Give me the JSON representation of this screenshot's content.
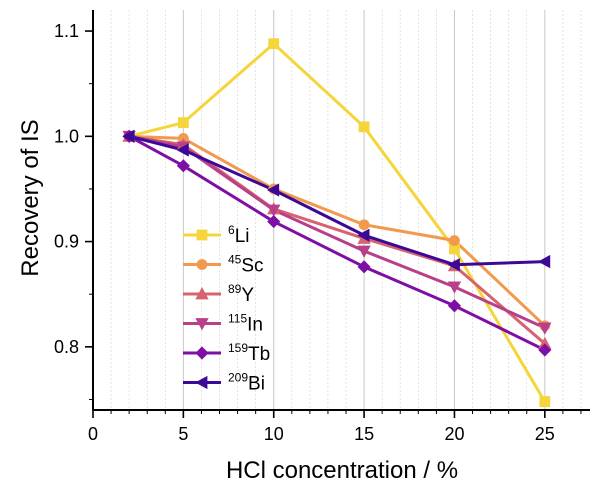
{
  "chart_data": {
    "type": "line",
    "title": "",
    "xlabel": "HCl concentration / %",
    "ylabel": "Recovery of IS",
    "xlim": [
      0,
      27.5
    ],
    "ylim": [
      0.74,
      1.12
    ],
    "x_ticks": [
      0,
      5,
      10,
      15,
      20,
      25
    ],
    "y_ticks": [
      0.8,
      0.9,
      1.0,
      1.1
    ],
    "x_tick_labels": [
      "0",
      "5",
      "10",
      "15",
      "20",
      "25"
    ],
    "y_tick_labels": [
      "0.8",
      "0.9",
      "1.0",
      "1.1"
    ],
    "grid": "vertical",
    "legend_placement": "lower-left",
    "series": [
      {
        "mass": "6",
        "element": "Li",
        "color": "#f5d53a",
        "marker": "square",
        "x": [
          2,
          5,
          10,
          15,
          20,
          25
        ],
        "y": [
          1.0,
          1.013,
          1.088,
          1.009,
          0.893,
          0.748
        ]
      },
      {
        "mass": "45",
        "element": "Sc",
        "color": "#f19a4e",
        "marker": "circle",
        "x": [
          2,
          5,
          10,
          15,
          20,
          25
        ],
        "y": [
          1.0,
          0.998,
          0.95,
          0.916,
          0.901,
          0.82
        ]
      },
      {
        "mass": "89",
        "element": "Y",
        "color": "#d7636e",
        "marker": "triangle-up",
        "x": [
          2,
          5,
          10,
          15,
          20,
          25
        ],
        "y": [
          1.0,
          0.992,
          0.931,
          0.903,
          0.877,
          0.803
        ]
      },
      {
        "mass": "115",
        "element": "In",
        "color": "#b8408a",
        "marker": "triangle-down",
        "x": [
          2,
          5,
          10,
          15,
          20,
          25
        ],
        "y": [
          1.0,
          0.99,
          0.93,
          0.891,
          0.857,
          0.818
        ]
      },
      {
        "mass": "159",
        "element": "Tb",
        "color": "#7e0fa5",
        "marker": "diamond",
        "x": [
          2,
          5,
          10,
          15,
          20,
          25
        ],
        "y": [
          1.0,
          0.972,
          0.919,
          0.876,
          0.839,
          0.797
        ]
      },
      {
        "mass": "209",
        "element": "Bi",
        "color": "#3c0996",
        "marker": "triangle-left",
        "x": [
          2,
          5,
          10,
          15,
          20,
          25
        ],
        "y": [
          1.0,
          0.987,
          0.949,
          0.906,
          0.878,
          0.881
        ]
      }
    ]
  }
}
